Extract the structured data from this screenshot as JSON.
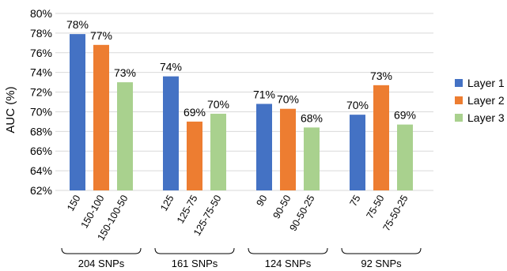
{
  "chart_data": {
    "type": "bar",
    "ylabel": "AUC (%)",
    "xlabel": "",
    "ylim": [
      62,
      80
    ],
    "yticks": [
      "62%",
      "64%",
      "66%",
      "68%",
      "70%",
      "72%",
      "74%",
      "76%",
      "78%",
      "80%"
    ],
    "grid": true,
    "legend_position": "right",
    "series": [
      {
        "name": "Layer 1",
        "color": "#4472C4"
      },
      {
        "name": "Layer 2",
        "color": "#ED7D31"
      },
      {
        "name": "Layer 3",
        "color": "#A9D18E"
      }
    ],
    "groups": [
      {
        "label": "204 SNPs",
        "bars": [
          {
            "category": "150",
            "series": 0,
            "value": 77.9,
            "label": "78%"
          },
          {
            "category": "150-100",
            "series": 1,
            "value": 76.8,
            "label": "77%"
          },
          {
            "category": "150-100-50",
            "series": 2,
            "value": 73.0,
            "label": "73%"
          }
        ]
      },
      {
        "label": "161 SNPs",
        "bars": [
          {
            "category": "125",
            "series": 0,
            "value": 73.6,
            "label": "74%"
          },
          {
            "category": "125-75",
            "series": 1,
            "value": 69.0,
            "label": "69%"
          },
          {
            "category": "125-75-50",
            "series": 2,
            "value": 69.8,
            "label": "70%"
          }
        ]
      },
      {
        "label": "124 SNPs",
        "bars": [
          {
            "category": "90",
            "series": 0,
            "value": 70.8,
            "label": "71%"
          },
          {
            "category": "90-50",
            "series": 1,
            "value": 70.3,
            "label": "70%"
          },
          {
            "category": "90-50-25",
            "series": 2,
            "value": 68.4,
            "label": "68%"
          }
        ]
      },
      {
        "label": "92 SNPs",
        "bars": [
          {
            "category": "75",
            "series": 0,
            "value": 69.7,
            "label": "70%"
          },
          {
            "category": "75-50",
            "series": 1,
            "value": 72.7,
            "label": "73%"
          },
          {
            "category": "75-50-25",
            "series": 2,
            "value": 68.7,
            "label": "69%"
          }
        ]
      }
    ]
  }
}
